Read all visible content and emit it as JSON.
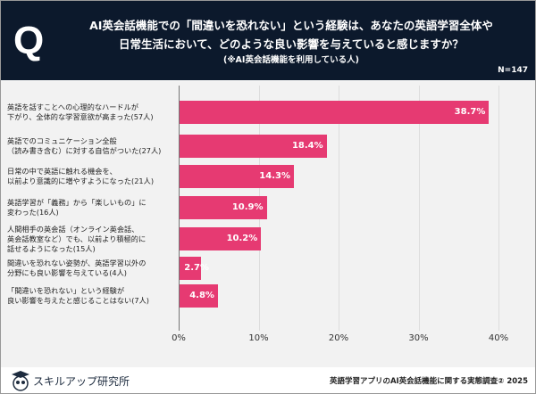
{
  "header": {
    "title_line1": "AI英会話機能での「間違いを恐れない」という経験は、あなたの英語学習全体や",
    "title_line2": "日常生活において、どのような良い影響を与えていると感じますか？",
    "subtitle": "(※AI英会話機能を利用している人)",
    "n": "N=147",
    "q_mark": "Q"
  },
  "footer": {
    "brand": "スキルアップ研究所",
    "source": "英語学習アプリのAI英会話機能に関する実態調査② 2025"
  },
  "colors": {
    "bar": "#e63a72",
    "header_bg": "#0c192c",
    "chart_bg": "#f2f2f2"
  },
  "chart_data": {
    "type": "bar",
    "orientation": "horizontal",
    "categories": [
      [
        "英語を話すことへの心理的なハードルが",
        "下がり、全体的な学習意欲が高まった(57人)"
      ],
      [
        "英語でのコミュニケーション全般",
        "（読み書き含む）に対する自信がついた(27人)"
      ],
      [
        "日常の中で英語に触れる機会を、",
        "以前より意識的に増やすようになった(21人)"
      ],
      [
        "英語学習が「義務」から「楽しいもの」に",
        "変わった(16人)"
      ],
      [
        "人間相手の英会話（オンライン英会話、",
        "英会話教室など）でも、以前より積極的に",
        "話せるようになった(15人)"
      ],
      [
        "間違いを恐れない姿勢が、英語学習以外の",
        "分野にも良い影響を与えている(4人)"
      ],
      [
        "「間違いを恐れない」という経験が",
        "良い影響を与えたと感じることはない(7人)"
      ]
    ],
    "values": [
      38.7,
      18.4,
      14.3,
      10.9,
      10.2,
      2.7,
      4.8
    ],
    "value_labels": [
      "38.7%",
      "18.4%",
      "14.3%",
      "10.9%",
      "10.2%",
      "2.7%",
      "4.8%"
    ],
    "xlim": [
      0,
      40
    ],
    "ticks": [
      "0%",
      "10%",
      "20%",
      "30%",
      "40%"
    ],
    "grid": true
  }
}
